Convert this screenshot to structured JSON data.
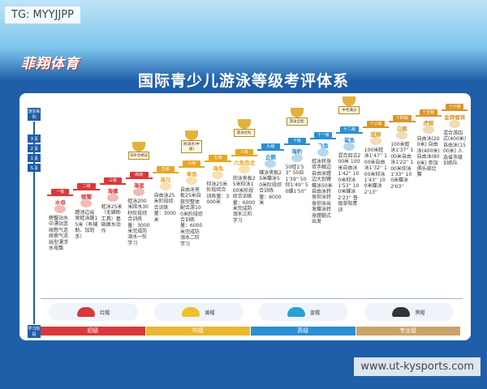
{
  "watermark": "TG: MYYJJPP",
  "site": "www.ut-kysports.com",
  "header": {
    "logo": "菲翔体育",
    "title": "国际青少儿游泳等级考评体系"
  },
  "axis": {
    "top": "游泳系列",
    "levels": [
      "3级",
      "2级",
      "1级",
      "S级"
    ],
    "bottom": "学习阶段"
  },
  "levels": [
    {
      "grade": "一级",
      "name": "水母",
      "desc": "螃蟹站水中漂站连续憋气连续换气流线型漂浮水母飘"
    },
    {
      "grade": "二级",
      "name": "螃蟹",
      "desc": "蹬池边出发蛙泳腿15米（有辅助、加划手）"
    },
    {
      "grade": "三级",
      "name": "海螺",
      "desc": "蛙泳25米（无辅助工具）基础换水动作"
    },
    {
      "grade": "四级",
      "name": "海星",
      "desc": "蛙泳200米踩水30秒阶段综合训练量：3000米完成防溺水一阶学习"
    },
    {
      "grade": "五级",
      "name": "海马",
      "desc": "自由泳25米阶段综合训练量：3000米"
    },
    {
      "grade": "六级",
      "name": "章鱼",
      "desc": "自由泳夹板25米自救完整体配合游100米阶段综合训练量：6000米完成防溺水二阶学习"
    },
    {
      "grade": "七级",
      "name": "海龟",
      "desc": "仰泳25米阶段综合训练量：3000米"
    },
    {
      "grade": "八级",
      "name": "六角恐龙",
      "desc": "仰泳夹板25米仰泳100米阶段综合训练量：6000米完成防溺水三阶学习"
    },
    {
      "grade": "九级",
      "name": "企鹅",
      "desc": "蝶泳夹板25米蝶泳50米阶段综合训练量：6000米"
    },
    {
      "grade": "十级",
      "name": "海豹",
      "desc": "50蛙1'53'' 50自1'39'' 50仰1'49'' 50蝶1'50''"
    },
    {
      "grade": "十一级",
      "name": "飞鱼",
      "desc": "蛙泳转身双手触边自由泳蹬边大划臂蝶泳50米自由泳转身仰泳转身仰泳出发蝶泳转身蹬腿式出发"
    },
    {
      "grade": "十二级",
      "name": "鲨鱼",
      "desc": "混合四式200米 100米自由泳1'42'' 100米仰泳1'53'' 100米蝶泳2'23'' 普级草阳青训"
    },
    {
      "grade": "十三级",
      "name": "蓝鲸",
      "desc": "100米蛙泳1'47'' 100米自由泳1'32'' 100米仰泳1'43'' 100米蝶泳2'13''"
    },
    {
      "grade": "十四级",
      "name": "白鲸",
      "desc": "100米蛙泳1'37'' 100米自由泳1'22'' 100米仰泳1'33'' 100米蝶泳2'03''"
    },
    {
      "grade": "十五级",
      "name": "虎鲸",
      "desc": "自由泳(200米) 自由泳(400米) 自由泳(800米) 参加俱乐部比赛"
    },
    {
      "grade": "十六级",
      "name": "金牌健将",
      "desc": "混合游四式(400米) 自由泳(1500米) 入选省市级训练队"
    }
  ],
  "trophies": [
    "深水合格证",
    "防溺水(中级)",
    "游泳达标",
    "游泳全能",
    "中考满分"
  ],
  "caps": [
    "红帽",
    "黄帽",
    "蓝帽",
    "黑帽"
  ],
  "stages": [
    "初级",
    "中级",
    "高级",
    "专业级"
  ]
}
